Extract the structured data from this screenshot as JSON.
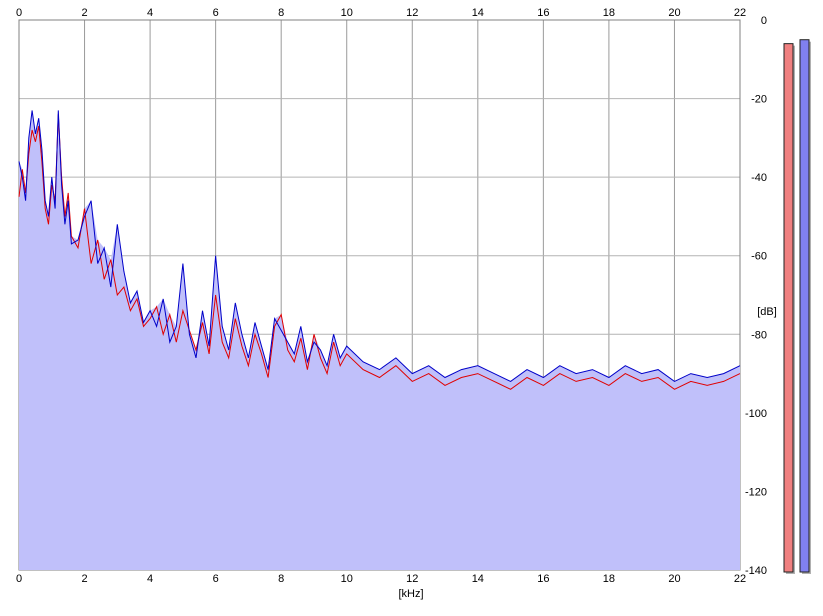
{
  "chart_data": {
    "type": "area",
    "xlabel": "[kHz]",
    "ylabel": "[dB]",
    "xlim": [
      0,
      22
    ],
    "ylim": [
      -140,
      0
    ],
    "x_ticks": [
      0,
      2,
      4,
      6,
      8,
      10,
      12,
      14,
      16,
      18,
      20,
      22
    ],
    "y_ticks": [
      0,
      -20,
      -40,
      -60,
      -80,
      -100,
      -120,
      -140
    ],
    "grid": true,
    "fill_color": "#c0c0fa",
    "series": [
      {
        "color": "#e00000",
        "x": [
          0,
          0.1,
          0.2,
          0.3,
          0.4,
          0.5,
          0.6,
          0.7,
          0.8,
          0.9,
          1.0,
          1.1,
          1.2,
          1.3,
          1.4,
          1.5,
          1.6,
          1.8,
          2.0,
          2.2,
          2.4,
          2.6,
          2.8,
          3.0,
          3.2,
          3.4,
          3.6,
          3.8,
          4.0,
          4.2,
          4.4,
          4.6,
          4.8,
          5.0,
          5.2,
          5.4,
          5.6,
          5.8,
          6.0,
          6.2,
          6.4,
          6.6,
          6.8,
          7.0,
          7.2,
          7.4,
          7.6,
          7.8,
          8.0,
          8.2,
          8.4,
          8.6,
          8.8,
          9.0,
          9.2,
          9.4,
          9.6,
          9.8,
          10.0,
          10.5,
          11.0,
          11.5,
          12.0,
          12.5,
          13.0,
          13.5,
          14.0,
          14.5,
          15.0,
          15.5,
          16.0,
          16.5,
          17.0,
          17.5,
          18.0,
          18.5,
          19.0,
          19.5,
          20.0,
          20.5,
          21.0,
          21.5,
          22.0
        ],
        "y": [
          -45,
          -38,
          -44,
          -34,
          -28,
          -31,
          -27,
          -36,
          -48,
          -52,
          -42,
          -46,
          -24,
          -40,
          -50,
          -44,
          -55,
          -58,
          -48,
          -62,
          -56,
          -66,
          -61,
          -70,
          -68,
          -74,
          -71,
          -78,
          -76,
          -73,
          -80,
          -75,
          -82,
          -74,
          -79,
          -84,
          -77,
          -85,
          -70,
          -82,
          -86,
          -76,
          -83,
          -88,
          -80,
          -85,
          -91,
          -78,
          -75,
          -84,
          -87,
          -81,
          -89,
          -80,
          -86,
          -90,
          -82,
          -88,
          -85,
          -89,
          -91,
          -88,
          -92,
          -90,
          -93,
          -91,
          -90,
          -92,
          -94,
          -91,
          -93,
          -90,
          -92,
          -91,
          -93,
          -90,
          -92,
          -91,
          -94,
          -92,
          -93,
          -92,
          -90
        ]
      },
      {
        "color": "#0000c8",
        "x": [
          0,
          0.1,
          0.2,
          0.3,
          0.4,
          0.5,
          0.6,
          0.7,
          0.8,
          0.9,
          1.0,
          1.1,
          1.2,
          1.3,
          1.4,
          1.5,
          1.6,
          1.8,
          2.0,
          2.2,
          2.4,
          2.6,
          2.8,
          3.0,
          3.2,
          3.4,
          3.6,
          3.8,
          4.0,
          4.2,
          4.4,
          4.6,
          4.8,
          5.0,
          5.2,
          5.4,
          5.6,
          5.8,
          6.0,
          6.2,
          6.4,
          6.6,
          6.8,
          7.0,
          7.2,
          7.4,
          7.6,
          7.8,
          8.0,
          8.2,
          8.4,
          8.6,
          8.8,
          9.0,
          9.2,
          9.4,
          9.6,
          9.8,
          10.0,
          10.5,
          11.0,
          11.5,
          12.0,
          12.5,
          13.0,
          13.5,
          14.0,
          14.5,
          15.0,
          15.5,
          16.0,
          16.5,
          17.0,
          17.5,
          18.0,
          18.5,
          19.0,
          19.5,
          20.0,
          20.5,
          21.0,
          21.5,
          22.0
        ],
        "y": [
          -36,
          -40,
          -46,
          -30,
          -23,
          -29,
          -25,
          -33,
          -46,
          -50,
          -40,
          -48,
          -23,
          -42,
          -52,
          -46,
          -57,
          -56,
          -50,
          -46,
          -62,
          -58,
          -68,
          -52,
          -64,
          -72,
          -69,
          -77,
          -74,
          -78,
          -71,
          -82,
          -78,
          -62,
          -80,
          -86,
          -74,
          -83,
          -60,
          -78,
          -84,
          -72,
          -80,
          -86,
          -77,
          -83,
          -89,
          -76,
          -79,
          -82,
          -85,
          -78,
          -87,
          -82,
          -84,
          -88,
          -80,
          -86,
          -83,
          -87,
          -89,
          -86,
          -90,
          -88,
          -91,
          -89,
          -88,
          -90,
          -92,
          -89,
          -91,
          -88,
          -90,
          -89,
          -91,
          -88,
          -90,
          -89,
          -92,
          -90,
          -91,
          -90,
          -88
        ]
      }
    ],
    "level_meters": [
      {
        "color": "#f08080",
        "value": -6
      },
      {
        "color": "#8080f0",
        "value": -5
      }
    ]
  }
}
